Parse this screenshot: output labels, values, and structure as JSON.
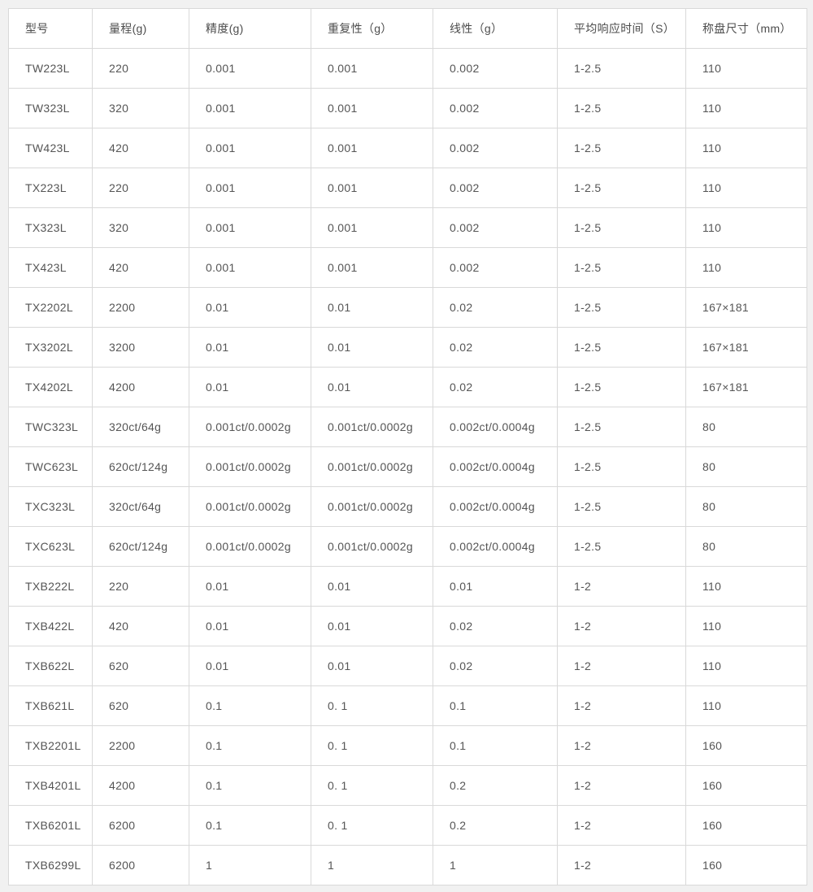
{
  "chart_data": {
    "type": "table",
    "title": "",
    "columns": [
      "型号",
      "量程(g)",
      "精度(g)",
      "重复性（g）",
      "线性（g）",
      "平均响应时间（S）",
      "称盘尺寸（mm）"
    ],
    "rows": [
      [
        "TW223L",
        "220",
        "0.001",
        "0.001",
        "0.002",
        "1-2.5",
        "110"
      ],
      [
        "TW323L",
        "320",
        "0.001",
        "0.001",
        "0.002",
        "1-2.5",
        "110"
      ],
      [
        "TW423L",
        "420",
        "0.001",
        "0.001",
        "0.002",
        "1-2.5",
        "110"
      ],
      [
        "TX223L",
        "220",
        "0.001",
        "0.001",
        "0.002",
        "1-2.5",
        "110"
      ],
      [
        "TX323L",
        "320",
        "0.001",
        "0.001",
        "0.002",
        "1-2.5",
        "110"
      ],
      [
        "TX423L",
        "420",
        "0.001",
        "0.001",
        "0.002",
        "1-2.5",
        "110"
      ],
      [
        "TX2202L",
        "2200",
        "0.01",
        "0.01",
        "0.02",
        "1-2.5",
        "167×181"
      ],
      [
        "TX3202L",
        "3200",
        "0.01",
        "0.01",
        "0.02",
        "1-2.5",
        "167×181"
      ],
      [
        "TX4202L",
        "4200",
        "0.01",
        "0.01",
        "0.02",
        "1-2.5",
        "167×181"
      ],
      [
        "TWC323L",
        "320ct/64g",
        "0.001ct/0.0002g",
        "0.001ct/0.0002g",
        "0.002ct/0.0004g",
        "1-2.5",
        "80"
      ],
      [
        "TWC623L",
        "620ct/124g",
        "0.001ct/0.0002g",
        "0.001ct/0.0002g",
        "0.002ct/0.0004g",
        "1-2.5",
        "80"
      ],
      [
        "TXC323L",
        "320ct/64g",
        "0.001ct/0.0002g",
        "0.001ct/0.0002g",
        "0.002ct/0.0004g",
        "1-2.5",
        "80"
      ],
      [
        "TXC623L",
        "620ct/124g",
        "0.001ct/0.0002g",
        "0.001ct/0.0002g",
        "0.002ct/0.0004g",
        "1-2.5",
        "80"
      ],
      [
        "TXB222L",
        "220",
        "0.01",
        "0.01",
        "0.01",
        "1-2",
        "110"
      ],
      [
        "TXB422L",
        "420",
        "0.01",
        "0.01",
        "0.02",
        "1-2",
        "110"
      ],
      [
        "TXB622L",
        "620",
        "0.01",
        "0.01",
        "0.02",
        "1-2",
        "110"
      ],
      [
        "TXB621L",
        "620",
        "0.1",
        "0. 1",
        "0.1",
        "1-2",
        "110"
      ],
      [
        "TXB2201L",
        "2200",
        "0.1",
        "0. 1",
        "0.1",
        "1-2",
        "160"
      ],
      [
        "TXB4201L",
        "4200",
        "0.1",
        "0. 1",
        "0.2",
        "1-2",
        "160"
      ],
      [
        "TXB6201L",
        "6200",
        "0.1",
        "0. 1",
        "0.2",
        "1-2",
        "160"
      ],
      [
        "TXB6299L",
        "6200",
        "1",
        "1",
        "1",
        "1-2",
        "160"
      ]
    ],
    "layout": {
      "grid": true,
      "header_position": "top"
    }
  },
  "colors": {
    "page_background": "#f1f1f1",
    "cell_background": "#ffffff",
    "border": "#d9d9d9",
    "header_text": "#4d4d4d",
    "body_text": "#555555"
  }
}
